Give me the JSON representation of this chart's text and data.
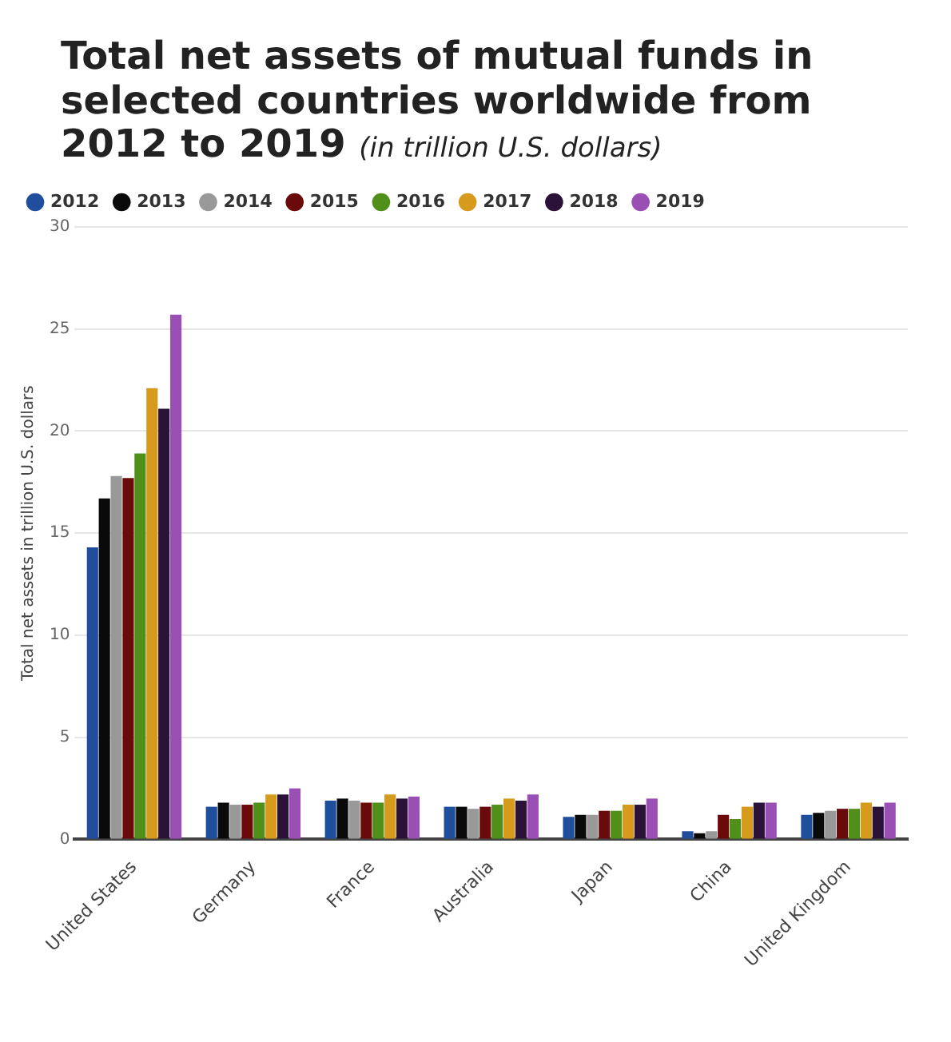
{
  "chart_data": {
    "type": "bar",
    "title": "Total net assets of mutual funds in selected countries worldwide from 2012 to 2019",
    "subtitle": "(in trillion U.S. dollars)",
    "ylabel": "Total net assets in trillion U.S. dollars",
    "categories": [
      "United States",
      "Germany",
      "France",
      "Australia",
      "Japan",
      "China",
      "United Kingdom"
    ],
    "series": [
      {
        "name": "2012",
        "color": "#1f4e9c",
        "values": [
          14.3,
          1.6,
          1.9,
          1.6,
          1.1,
          0.4,
          1.2
        ]
      },
      {
        "name": "2013",
        "color": "#0a0a0a",
        "values": [
          16.7,
          1.8,
          2.0,
          1.6,
          1.2,
          0.3,
          1.3
        ]
      },
      {
        "name": "2014",
        "color": "#999999",
        "values": [
          17.8,
          1.7,
          1.9,
          1.5,
          1.2,
          0.4,
          1.4
        ]
      },
      {
        "name": "2015",
        "color": "#6b0a0a",
        "values": [
          17.7,
          1.7,
          1.8,
          1.6,
          1.4,
          1.2,
          1.5
        ]
      },
      {
        "name": "2016",
        "color": "#4f8f1a",
        "values": [
          18.9,
          1.8,
          1.8,
          1.7,
          1.4,
          1.0,
          1.5
        ]
      },
      {
        "name": "2017",
        "color": "#d69a1c",
        "values": [
          22.1,
          2.2,
          2.2,
          2.0,
          1.7,
          1.6,
          1.8
        ]
      },
      {
        "name": "2018",
        "color": "#2a1238",
        "values": [
          21.1,
          2.2,
          2.0,
          1.9,
          1.7,
          1.8,
          1.6
        ]
      },
      {
        "name": "2019",
        "color": "#9a4fb5",
        "values": [
          25.7,
          2.5,
          2.1,
          2.2,
          2.0,
          1.8,
          1.8
        ]
      }
    ],
    "ylim": [
      0,
      30
    ],
    "yticks": [
      0,
      5,
      10,
      15,
      20,
      25,
      30
    ],
    "grid": "y",
    "legend": "top"
  }
}
